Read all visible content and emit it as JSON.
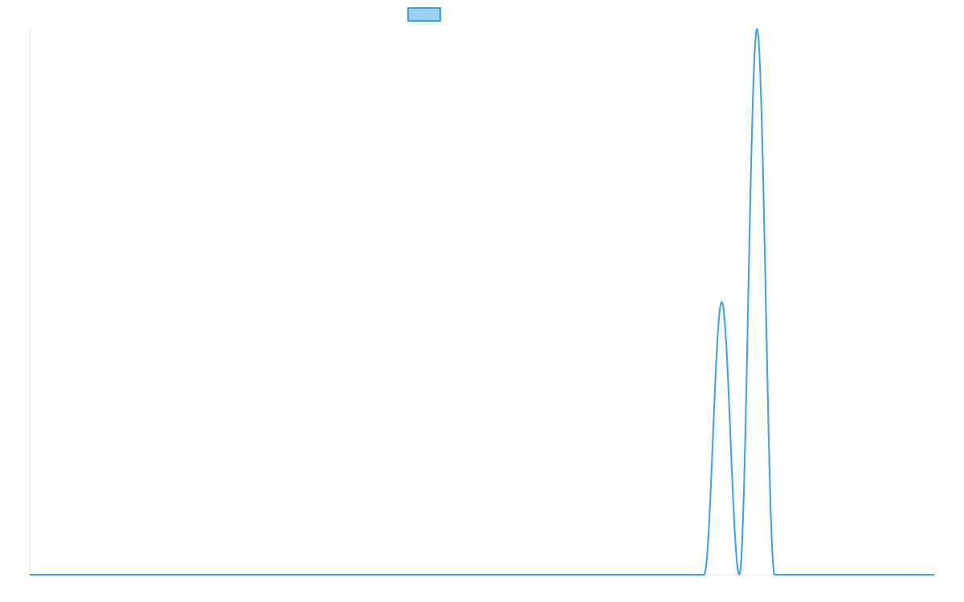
{
  "chart_data": {
    "type": "line",
    "title": "",
    "xlabel": "",
    "ylabel": "",
    "legend": {
      "placement": "top-center",
      "entries": [
        {
          "label": "",
          "color": "#36a2eb",
          "fill": "#9ad0f5"
        }
      ]
    },
    "grid": false,
    "xlim": [
      0,
      1
    ],
    "ylim": [
      0,
      1
    ],
    "series": [
      {
        "color": "#36a2eb",
        "peaks": [
          {
            "center": 0.765,
            "amplitude": 0.5,
            "half_width": 0.0195
          },
          {
            "center": 0.804,
            "amplitude": 1.0,
            "half_width": 0.0195
          }
        ]
      }
    ]
  }
}
